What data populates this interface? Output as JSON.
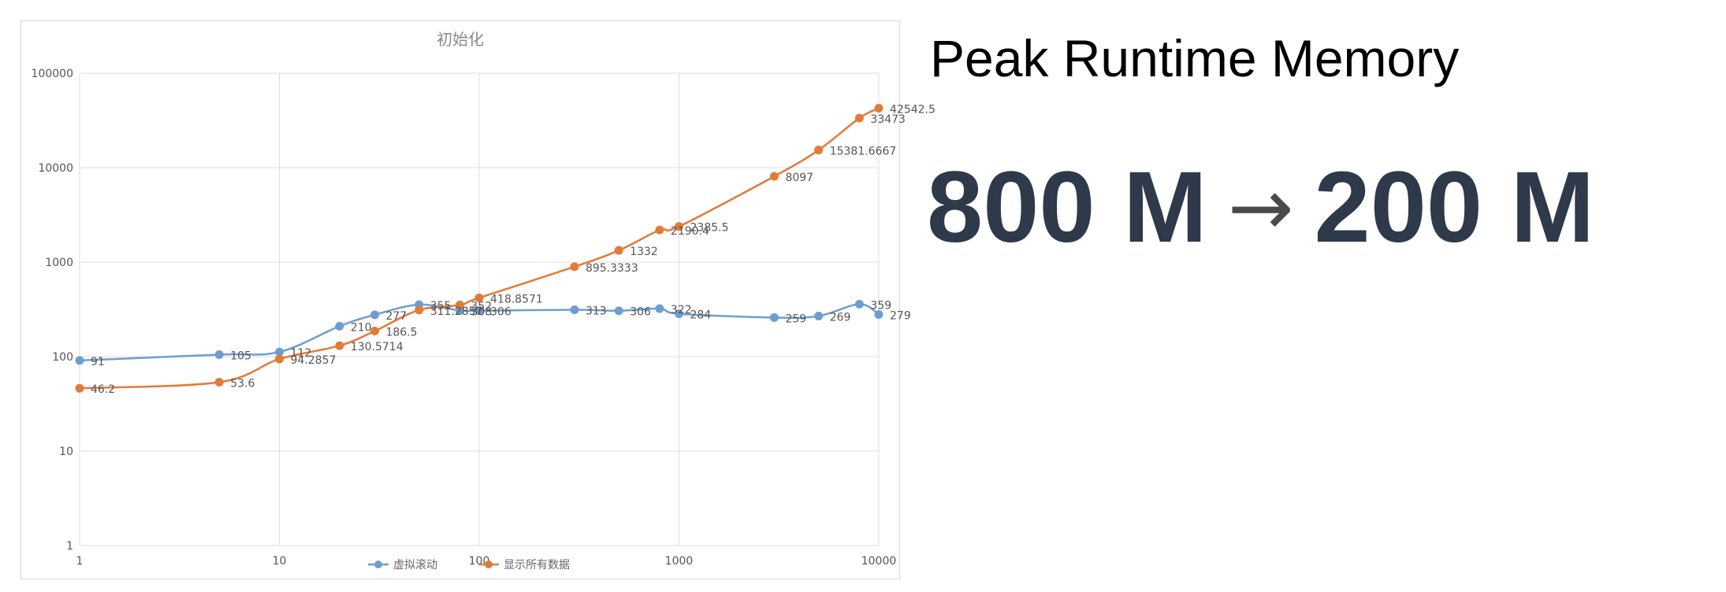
{
  "slide": {
    "title": "Peak Runtime Memory",
    "from_value": "800 M",
    "arrow": "→",
    "to_value": "200 M"
  },
  "colors": {
    "series_blue": "#6e9ecf",
    "series_orange": "#e07b39",
    "headline": "#2e3a4a"
  },
  "chart_data": {
    "type": "line",
    "title": "初始化",
    "xlabel": "",
    "ylabel": "",
    "xscale": "log",
    "yscale": "log",
    "xlim": [
      1,
      10000
    ],
    "ylim": [
      1,
      100000
    ],
    "x_ticks": [
      "1",
      "10",
      "100",
      "1000",
      "10000"
    ],
    "y_ticks": [
      "1",
      "10",
      "100",
      "1000",
      "10000",
      "100000"
    ],
    "grid": true,
    "legend_position": "bottom",
    "series": [
      {
        "name": "虚拟滚动",
        "color": "#6e9ecf",
        "points": [
          {
            "x": 1,
            "y": 91,
            "label": "91"
          },
          {
            "x": 5,
            "y": 105,
            "label": "105"
          },
          {
            "x": 10,
            "y": 112,
            "label": "112"
          },
          {
            "x": 20,
            "y": 210,
            "label": "210"
          },
          {
            "x": 30,
            "y": 277,
            "label": "277"
          },
          {
            "x": 50,
            "y": 355,
            "label": "355"
          },
          {
            "x": 80,
            "y": 308,
            "label": "308"
          },
          {
            "x": 100,
            "y": 306,
            "label": "306"
          },
          {
            "x": 300,
            "y": 313,
            "label": "313"
          },
          {
            "x": 500,
            "y": 306,
            "label": "306"
          },
          {
            "x": 800,
            "y": 322,
            "label": "322"
          },
          {
            "x": 1000,
            "y": 284,
            "label": "284"
          },
          {
            "x": 3000,
            "y": 259,
            "label": "259"
          },
          {
            "x": 5000,
            "y": 269,
            "label": "269"
          },
          {
            "x": 8000,
            "y": 359,
            "label": "359"
          },
          {
            "x": 10000,
            "y": 279,
            "label": "279"
          }
        ]
      },
      {
        "name": "显示所有数据",
        "color": "#e07b39",
        "points": [
          {
            "x": 1,
            "y": 46.2,
            "label": "46.2"
          },
          {
            "x": 5,
            "y": 53.6,
            "label": "53.6"
          },
          {
            "x": 10,
            "y": 94.2857,
            "label": "94.2857"
          },
          {
            "x": 20,
            "y": 130.5714,
            "label": "130.5714"
          },
          {
            "x": 30,
            "y": 186.5,
            "label": "186.5"
          },
          {
            "x": 50,
            "y": 311.2857,
            "label": "311.2857"
          },
          {
            "x": 80,
            "y": 352,
            "label": "352"
          },
          {
            "x": 100,
            "y": 418.8571,
            "label": "418.8571"
          },
          {
            "x": 300,
            "y": 895.3333,
            "label": "895.3333"
          },
          {
            "x": 500,
            "y": 1332,
            "label": "1332"
          },
          {
            "x": 800,
            "y": 2190.4,
            "label": "2190.4"
          },
          {
            "x": 1000,
            "y": 2385.5,
            "label": "2385.5"
          },
          {
            "x": 3000,
            "y": 8097,
            "label": "8097"
          },
          {
            "x": 5000,
            "y": 15381.6667,
            "label": "15381.6667"
          },
          {
            "x": 8000,
            "y": 33473,
            "label": "33473"
          },
          {
            "x": 10000,
            "y": 42542.5,
            "label": "42542.5"
          }
        ]
      }
    ]
  }
}
